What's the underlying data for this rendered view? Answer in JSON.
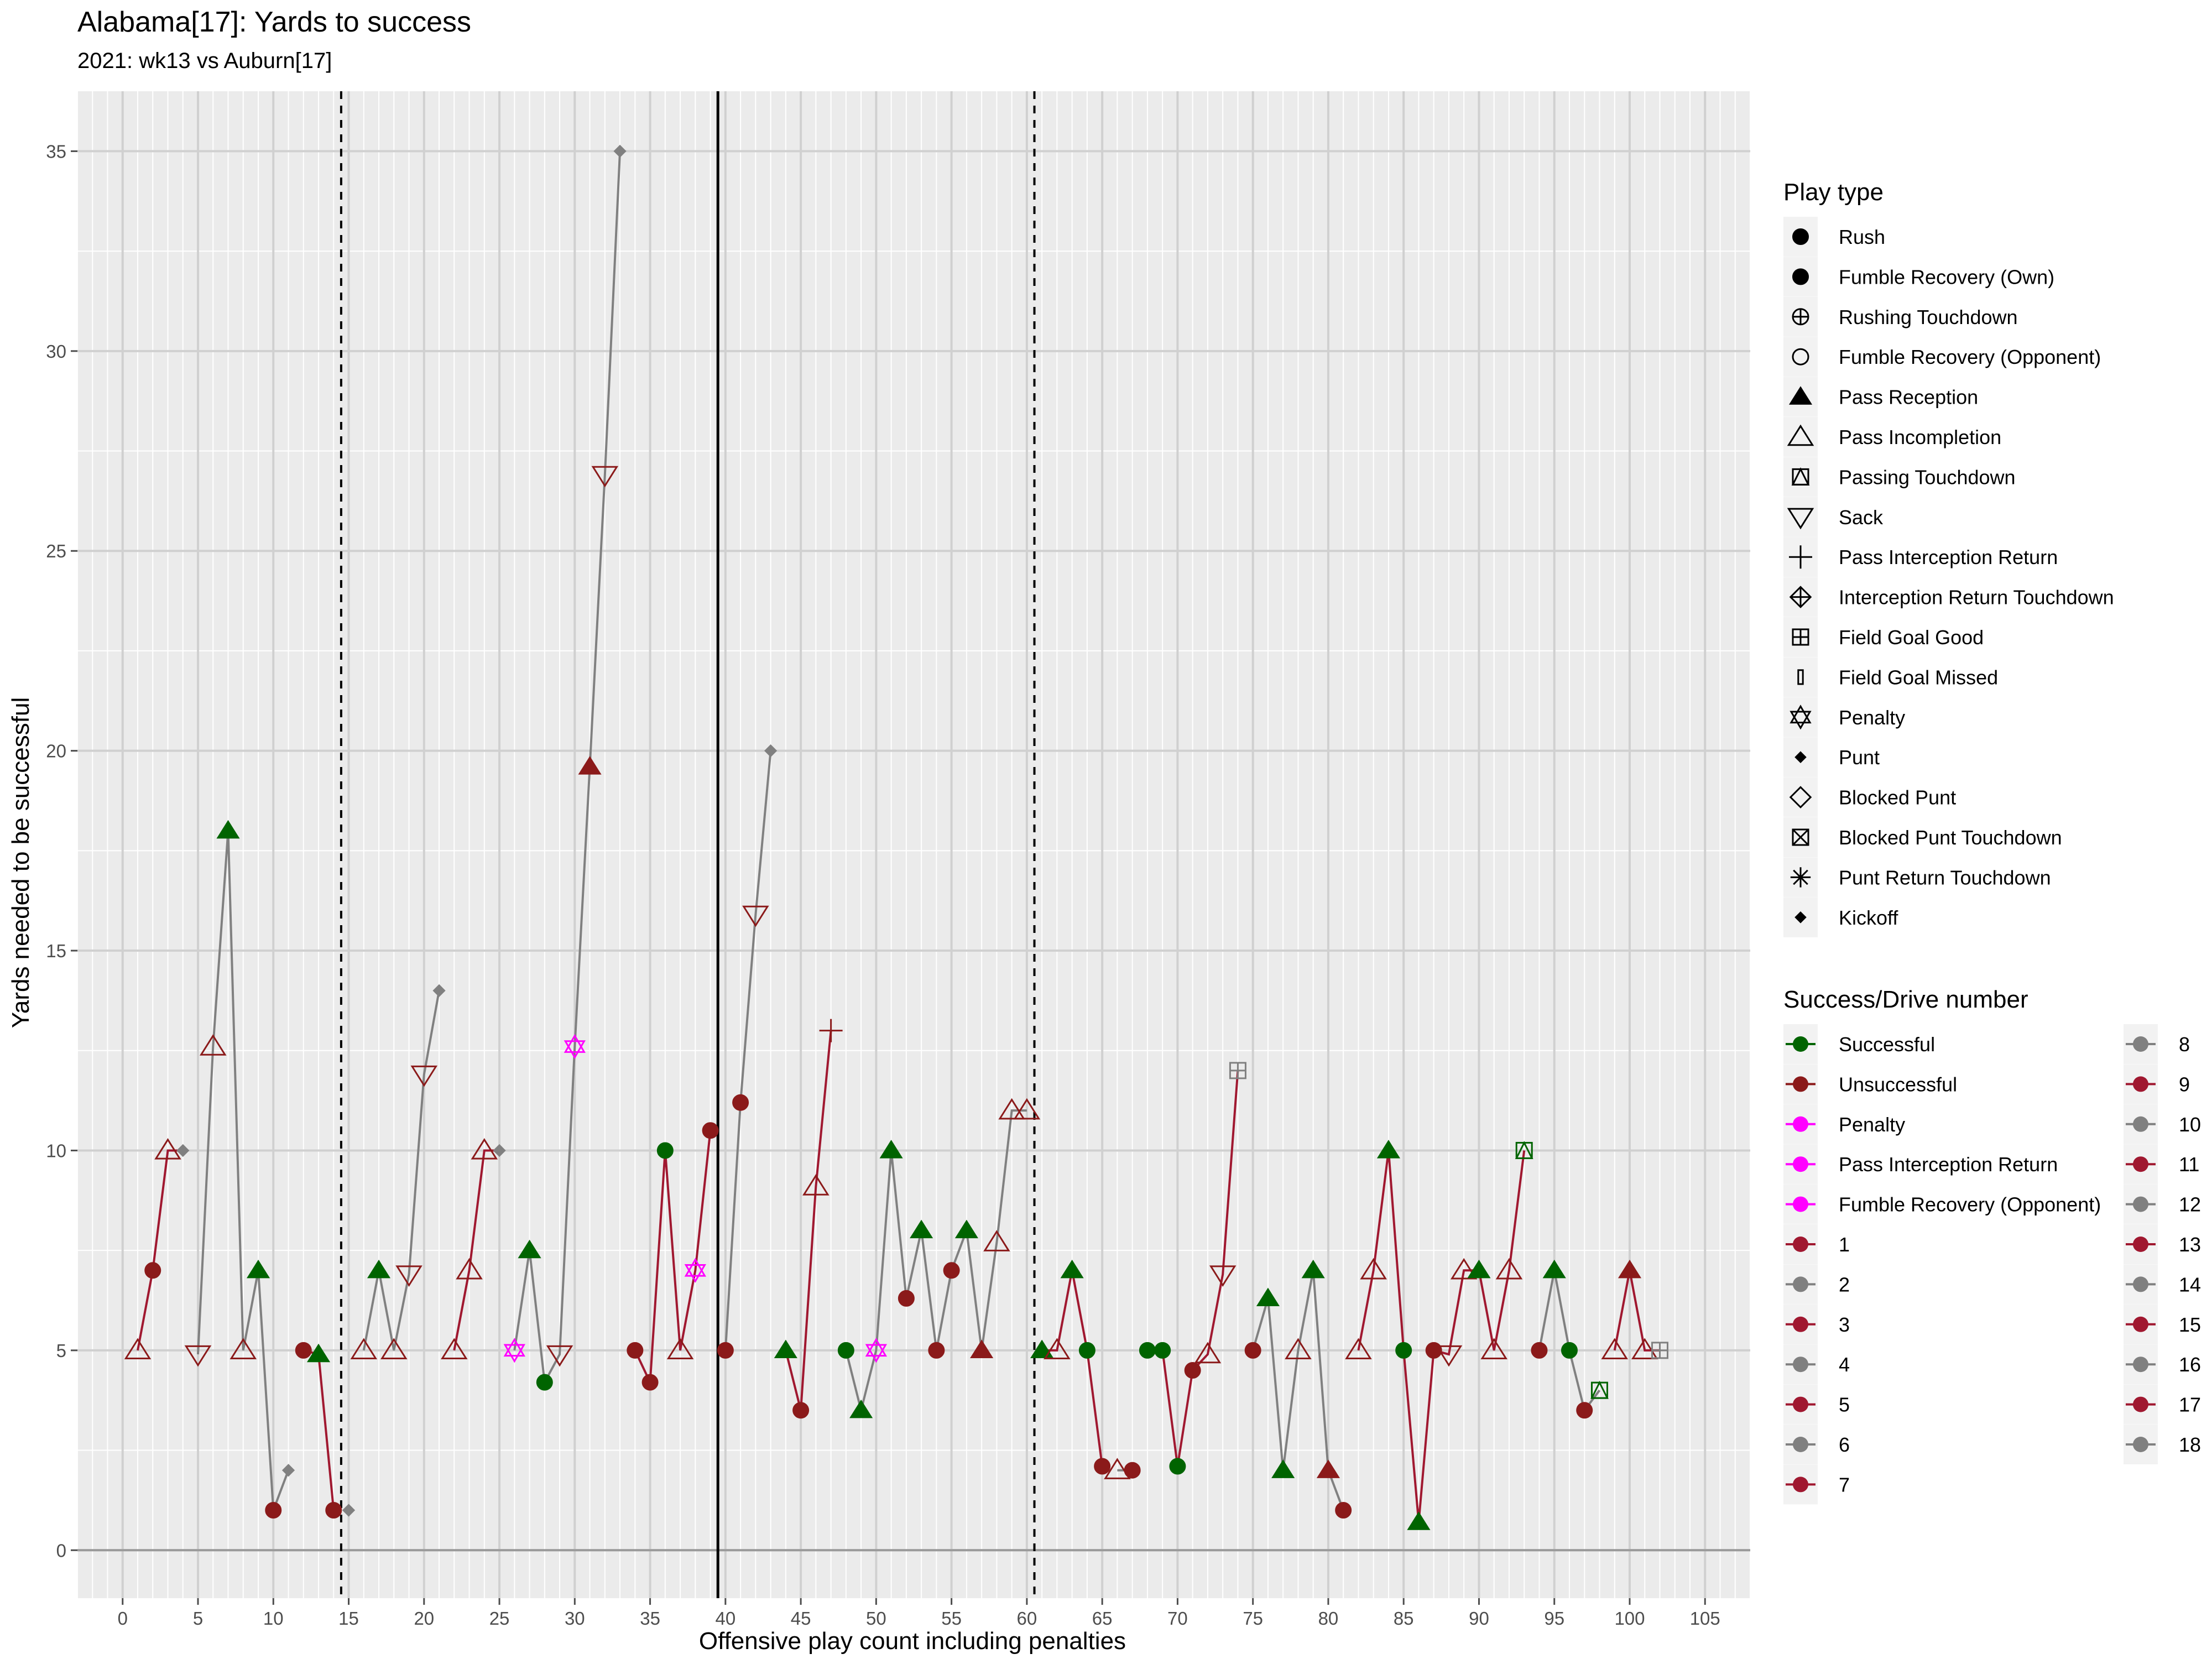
{
  "chart_data": {
    "type": "scatter",
    "title": "Alabama[17]: Yards to success",
    "subtitle": "2021: wk13 vs Auburn[17]",
    "xlabel": "Offensive play count including penalties",
    "ylabel": "Yards needed to be successful",
    "xlim": [
      -3,
      108
    ],
    "ylim": [
      -1.2,
      36.5
    ],
    "xticks": [
      0,
      5,
      10,
      15,
      20,
      25,
      30,
      35,
      40,
      45,
      50,
      55,
      60,
      65,
      70,
      75,
      80,
      85,
      90,
      95,
      100,
      105
    ],
    "yticks": [
      0,
      5,
      10,
      15,
      20,
      25,
      30,
      35
    ],
    "vlines": [
      {
        "x": 14.5,
        "style": "dashed"
      },
      {
        "x": 39.5,
        "style": "solid"
      },
      {
        "x": 60.5,
        "style": "dashed"
      }
    ],
    "colors": {
      "Successful": "#006400",
      "Unsuccessful": "#8B1A1A",
      "Penalty": "#FF00FF",
      "odd_drive": "#A01830",
      "even_drive": "#808080",
      "panel": "#EBEBEB",
      "grid": "#FFFFFF"
    },
    "legend_play_type": {
      "title": "Play type",
      "items": [
        {
          "label": "Rush",
          "shape": "circle-filled"
        },
        {
          "label": "Fumble Recovery (Own)",
          "shape": "circle-filled"
        },
        {
          "label": "Rushing Touchdown",
          "shape": "circle-plus"
        },
        {
          "label": "Fumble Recovery (Opponent)",
          "shape": "circle-open"
        },
        {
          "label": "Pass Reception",
          "shape": "triangle-filled"
        },
        {
          "label": "Pass Incompletion",
          "shape": "triangle-open"
        },
        {
          "label": "Passing Touchdown",
          "shape": "square-triangle"
        },
        {
          "label": "Sack",
          "shape": "triangle-down-open"
        },
        {
          "label": "Pass Interception Return",
          "shape": "plus"
        },
        {
          "label": "Interception Return Touchdown",
          "shape": "diamond-plus"
        },
        {
          "label": "Field Goal Good",
          "shape": "square-plus"
        },
        {
          "label": "Field Goal Missed",
          "shape": "thin-rect"
        },
        {
          "label": "Penalty",
          "shape": "star-of-david"
        },
        {
          "label": "Punt",
          "shape": "diamond-filled"
        },
        {
          "label": "Blocked Punt",
          "shape": "diamond-open"
        },
        {
          "label": "Blocked Punt Touchdown",
          "shape": "square-x"
        },
        {
          "label": "Punt Return Touchdown",
          "shape": "asterisk"
        },
        {
          "label": "Kickoff",
          "shape": "diamond-filled"
        }
      ]
    },
    "legend_success_drive": {
      "title": "Success/Drive number",
      "items": [
        {
          "label": "Successful",
          "color": "#006400"
        },
        {
          "label": "Unsuccessful",
          "color": "#8B1A1A"
        },
        {
          "label": "Penalty",
          "color": "#FF00FF"
        },
        {
          "label": "Pass Interception Return",
          "color": "#FF00FF"
        },
        {
          "label": "Fumble Recovery (Opponent)",
          "color": "#FF00FF"
        },
        {
          "label": "1",
          "color": "#A01830"
        },
        {
          "label": "2",
          "color": "#808080"
        },
        {
          "label": "3",
          "color": "#A01830"
        },
        {
          "label": "4",
          "color": "#808080"
        },
        {
          "label": "5",
          "color": "#A01830"
        },
        {
          "label": "6",
          "color": "#808080"
        },
        {
          "label": "7",
          "color": "#A01830"
        },
        {
          "label": "8",
          "color": "#808080"
        },
        {
          "label": "9",
          "color": "#A01830"
        },
        {
          "label": "10",
          "color": "#808080"
        },
        {
          "label": "11",
          "color": "#A01830"
        },
        {
          "label": "12",
          "color": "#808080"
        },
        {
          "label": "13",
          "color": "#A01830"
        },
        {
          "label": "14",
          "color": "#808080"
        },
        {
          "label": "15",
          "color": "#A01830"
        },
        {
          "label": "16",
          "color": "#808080"
        },
        {
          "label": "17",
          "color": "#A01830"
        },
        {
          "label": "18",
          "color": "#808080"
        }
      ]
    },
    "drives": [
      {
        "drive": 1,
        "points": [
          {
            "x": 1,
            "y": 5,
            "type": "Pass Incompletion",
            "result": "Unsuccessful"
          },
          {
            "x": 2,
            "y": 7,
            "type": "Rush",
            "result": "Unsuccessful"
          },
          {
            "x": 3,
            "y": 10,
            "type": "Pass Incompletion",
            "result": "Unsuccessful"
          },
          {
            "x": 4,
            "y": 10,
            "type": "Punt",
            "result": "Punt"
          }
        ]
      },
      {
        "drive": 2,
        "points": [
          {
            "x": 5,
            "y": 4.9,
            "type": "Sack",
            "result": "Unsuccessful"
          },
          {
            "x": 6,
            "y": 12.6,
            "type": "Pass Incompletion",
            "result": "Unsuccessful"
          },
          {
            "x": 7,
            "y": 18,
            "type": "Pass Reception",
            "result": "Successful"
          },
          {
            "x": 8,
            "y": 5,
            "type": "Pass Incompletion",
            "result": "Unsuccessful"
          },
          {
            "x": 9,
            "y": 7,
            "type": "Pass Reception",
            "result": "Successful"
          },
          {
            "x": 10,
            "y": 1,
            "type": "Rush",
            "result": "Unsuccessful"
          },
          {
            "x": 11,
            "y": 2,
            "type": "Punt",
            "result": "Punt"
          }
        ]
      },
      {
        "drive": 3,
        "points": [
          {
            "x": 12,
            "y": 5,
            "type": "Rush",
            "result": "Unsuccessful"
          },
          {
            "x": 13,
            "y": 4.9,
            "type": "Pass Reception",
            "result": "Successful"
          },
          {
            "x": 14,
            "y": 1,
            "type": "Rush",
            "result": "Unsuccessful"
          }
        ]
      },
      {
        "drive": 4,
        "points": [
          {
            "x": 15,
            "y": 1,
            "type": "Punt",
            "result": "Punt"
          }
        ]
      },
      {
        "drive": 4,
        "points": [
          {
            "x": 16,
            "y": 5,
            "type": "Pass Incompletion",
            "result": "Unsuccessful"
          },
          {
            "x": 17,
            "y": 7,
            "type": "Pass Reception",
            "result": "Successful"
          },
          {
            "x": 18,
            "y": 5,
            "type": "Pass Incompletion",
            "result": "Unsuccessful"
          },
          {
            "x": 19,
            "y": 6.9,
            "type": "Sack",
            "result": "Unsuccessful"
          },
          {
            "x": 20,
            "y": 11.9,
            "type": "Sack",
            "result": "Unsuccessful"
          },
          {
            "x": 21,
            "y": 14,
            "type": "Punt",
            "result": "Punt"
          }
        ]
      },
      {
        "drive": 5,
        "points": [
          {
            "x": 22,
            "y": 5,
            "type": "Pass Incompletion",
            "result": "Unsuccessful"
          },
          {
            "x": 23,
            "y": 7,
            "type": "Pass Incompletion",
            "result": "Unsuccessful"
          },
          {
            "x": 24,
            "y": 10,
            "type": "Pass Incompletion",
            "result": "Unsuccessful"
          },
          {
            "x": 25,
            "y": 10,
            "type": "Punt",
            "result": "Punt"
          }
        ]
      },
      {
        "drive": 6,
        "points": [
          {
            "x": 26,
            "y": 5,
            "type": "Penalty",
            "result": "Penalty"
          },
          {
            "x": 27,
            "y": 7.5,
            "type": "Pass Reception",
            "result": "Successful"
          },
          {
            "x": 28,
            "y": 4.2,
            "type": "Rush",
            "result": "Successful"
          },
          {
            "x": 29,
            "y": 4.9,
            "type": "Sack",
            "result": "Unsuccessful"
          },
          {
            "x": 30,
            "y": 12.6,
            "type": "Penalty",
            "result": "Penalty"
          },
          {
            "x": 31,
            "y": 19.6,
            "type": "Pass Reception",
            "result": "Unsuccessful"
          },
          {
            "x": 32,
            "y": 26.9,
            "type": "Sack",
            "result": "Unsuccessful"
          },
          {
            "x": 33,
            "y": 35,
            "type": "Punt",
            "result": "Punt"
          }
        ]
      },
      {
        "drive": 7,
        "points": [
          {
            "x": 34,
            "y": 5,
            "type": "Rush",
            "result": "Unsuccessful"
          },
          {
            "x": 35,
            "y": 4.2,
            "type": "Rush",
            "result": "Unsuccessful"
          },
          {
            "x": 36,
            "y": 10,
            "type": "Rush",
            "result": "Successful"
          },
          {
            "x": 37,
            "y": 5,
            "type": "Pass Incompletion",
            "result": "Unsuccessful"
          },
          {
            "x": 38,
            "y": 7,
            "type": "Penalty",
            "result": "Penalty"
          },
          {
            "x": 39,
            "y": 10.5,
            "type": "Rush",
            "result": "Unsuccessful"
          }
        ]
      },
      {
        "drive": 8,
        "points": [
          {
            "x": 40,
            "y": 5,
            "type": "Rush",
            "result": "Unsuccessful"
          },
          {
            "x": 41,
            "y": 11.2,
            "type": "Rush",
            "result": "Unsuccessful"
          },
          {
            "x": 42,
            "y": 15.9,
            "type": "Sack",
            "result": "Unsuccessful"
          },
          {
            "x": 43,
            "y": 20,
            "type": "Punt",
            "result": "Punt"
          }
        ]
      },
      {
        "drive": 9,
        "points": [
          {
            "x": 44,
            "y": 5,
            "type": "Pass Reception",
            "result": "Successful"
          },
          {
            "x": 45,
            "y": 3.5,
            "type": "Rush",
            "result": "Unsuccessful"
          },
          {
            "x": 46,
            "y": 9.1,
            "type": "Pass Incompletion",
            "result": "Unsuccessful"
          },
          {
            "x": 47,
            "y": 13,
            "type": "Pass Interception Return",
            "result": "Unsuccessful"
          }
        ]
      },
      {
        "drive": 10,
        "points": [
          {
            "x": 48,
            "y": 5,
            "type": "Rush",
            "result": "Successful"
          },
          {
            "x": 49,
            "y": 3.5,
            "type": "Pass Reception",
            "result": "Successful"
          },
          {
            "x": 50,
            "y": 5,
            "type": "Penalty",
            "result": "Penalty"
          },
          {
            "x": 51,
            "y": 10,
            "type": "Pass Reception",
            "result": "Successful"
          },
          {
            "x": 52,
            "y": 6.3,
            "type": "Rush",
            "result": "Unsuccessful"
          },
          {
            "x": 53,
            "y": 8,
            "type": "Pass Reception",
            "result": "Successful"
          },
          {
            "x": 54,
            "y": 5,
            "type": "Rush",
            "result": "Unsuccessful"
          },
          {
            "x": 55,
            "y": 7,
            "type": "Rush",
            "result": "Unsuccessful"
          },
          {
            "x": 56,
            "y": 8,
            "type": "Pass Reception",
            "result": "Successful"
          },
          {
            "x": 57,
            "y": 5,
            "type": "Pass Reception",
            "result": "Unsuccessful"
          },
          {
            "x": 58,
            "y": 7.7,
            "type": "Pass Incompletion",
            "result": "Unsuccessful"
          },
          {
            "x": 59,
            "y": 11,
            "type": "Pass Incompletion",
            "result": "Unsuccessful"
          },
          {
            "x": 60,
            "y": 11,
            "type": "Pass Incompletion",
            "result": "Unsuccessful"
          }
        ]
      },
      {
        "drive": 11,
        "points": [
          {
            "x": 61,
            "y": 5,
            "type": "Pass Reception",
            "result": "Successful"
          },
          {
            "x": 62,
            "y": 5,
            "type": "Pass Incompletion",
            "result": "Unsuccessful"
          },
          {
            "x": 63,
            "y": 7,
            "type": "Pass Reception",
            "result": "Successful"
          },
          {
            "x": 64,
            "y": 5,
            "type": "Rush",
            "result": "Successful"
          },
          {
            "x": 65,
            "y": 2.1,
            "type": "Rush",
            "result": "Unsuccessful"
          }
        ]
      },
      {
        "drive": 12,
        "points": [
          {
            "x": 66,
            "y": 2,
            "type": "Pass Incompletion",
            "result": "Unsuccessful"
          },
          {
            "x": 67,
            "y": 2,
            "type": "Rush",
            "result": "Unsuccessful"
          }
        ]
      },
      {
        "drive": 13,
        "points": [
          {
            "x": 68,
            "y": 5,
            "type": "Rush",
            "result": "Successful"
          },
          {
            "x": 69,
            "y": 5,
            "type": "Rush",
            "result": "Successful"
          },
          {
            "x": 70,
            "y": 2.1,
            "type": "Rush",
            "result": "Successful"
          },
          {
            "x": 71,
            "y": 4.5,
            "type": "Rush",
            "result": "Unsuccessful"
          },
          {
            "x": 72,
            "y": 4.9,
            "type": "Pass Incompletion",
            "result": "Unsuccessful"
          },
          {
            "x": 73,
            "y": 6.9,
            "type": "Sack",
            "result": "Unsuccessful"
          },
          {
            "x": 74,
            "y": 12,
            "type": "Field Goal Good",
            "result": "Field Goal"
          }
        ]
      },
      {
        "drive": 14,
        "points": [
          {
            "x": 75,
            "y": 5,
            "type": "Rush",
            "result": "Unsuccessful"
          },
          {
            "x": 76,
            "y": 6.3,
            "type": "Pass Reception",
            "result": "Successful"
          },
          {
            "x": 77,
            "y": 2,
            "type": "Pass Reception",
            "result": "Successful"
          },
          {
            "x": 78,
            "y": 5,
            "type": "Pass Incompletion",
            "result": "Unsuccessful"
          },
          {
            "x": 79,
            "y": 7,
            "type": "Pass Reception",
            "result": "Successful"
          },
          {
            "x": 80,
            "y": 2,
            "type": "Pass Reception",
            "result": "Unsuccessful"
          },
          {
            "x": 81,
            "y": 1,
            "type": "Rush",
            "result": "Unsuccessful"
          }
        ]
      },
      {
        "drive": 15,
        "points": [
          {
            "x": 82,
            "y": 5,
            "type": "Pass Incompletion",
            "result": "Unsuccessful"
          },
          {
            "x": 83,
            "y": 7,
            "type": "Pass Incompletion",
            "result": "Unsuccessful"
          },
          {
            "x": 84,
            "y": 10,
            "type": "Pass Reception",
            "result": "Successful"
          },
          {
            "x": 85,
            "y": 5,
            "type": "Rush",
            "result": "Successful"
          },
          {
            "x": 86,
            "y": 0.7,
            "type": "Pass Reception",
            "result": "Successful"
          },
          {
            "x": 87,
            "y": 5,
            "type": "Rush",
            "result": "Unsuccessful"
          },
          {
            "x": 88,
            "y": 4.9,
            "type": "Sack",
            "result": "Unsuccessful"
          },
          {
            "x": 89,
            "y": 7,
            "type": "Pass Incompletion",
            "result": "Unsuccessful"
          },
          {
            "x": 90,
            "y": 7,
            "type": "Pass Reception",
            "result": "Successful"
          },
          {
            "x": 91,
            "y": 5,
            "type": "Pass Incompletion",
            "result": "Unsuccessful"
          },
          {
            "x": 92,
            "y": 7,
            "type": "Pass Incompletion",
            "result": "Unsuccessful"
          },
          {
            "x": 93,
            "y": 10,
            "type": "Passing Touchdown",
            "result": "Successful"
          }
        ]
      },
      {
        "drive": 16,
        "points": [
          {
            "x": 94,
            "y": 5,
            "type": "Rush",
            "result": "Unsuccessful"
          },
          {
            "x": 95,
            "y": 7,
            "type": "Pass Reception",
            "result": "Successful"
          },
          {
            "x": 96,
            "y": 5,
            "type": "Rush",
            "result": "Successful"
          },
          {
            "x": 97,
            "y": 3.5,
            "type": "Rush",
            "result": "Unsuccessful"
          },
          {
            "x": 98,
            "y": 4,
            "type": "Passing Touchdown",
            "result": "Successful"
          }
        ]
      },
      {
        "drive": 17,
        "points": [
          {
            "x": 99,
            "y": 5,
            "type": "Pass Incompletion",
            "result": "Unsuccessful"
          },
          {
            "x": 100,
            "y": 7,
            "type": "Pass Reception",
            "result": "Unsuccessful"
          },
          {
            "x": 101,
            "y": 5,
            "type": "Pass Incompletion",
            "result": "Unsuccessful"
          },
          {
            "x": 102,
            "y": 5,
            "type": "Field Goal Good",
            "result": "Field Goal"
          }
        ]
      }
    ]
  }
}
